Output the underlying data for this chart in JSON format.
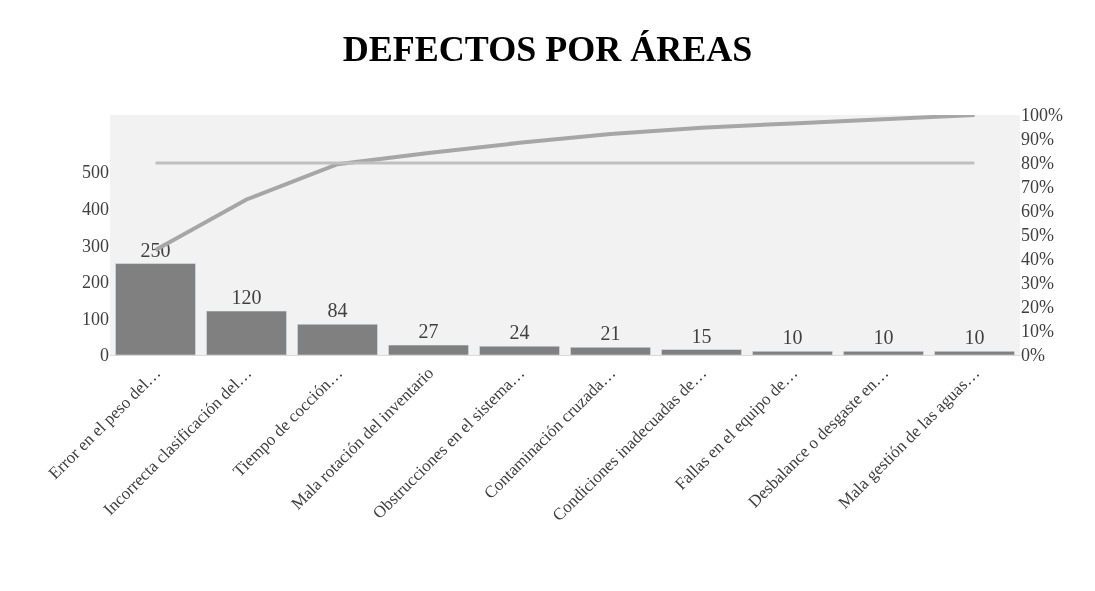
{
  "chart_data": {
    "type": "bar",
    "title": "DEFECTOS POR ÁREAS",
    "categories": [
      "Error en el peso del…",
      "Incorrecta clasificación del…",
      "Tiempo de cocción…",
      "Mala rotación del inventario",
      "Obstrucciones en el sistema…",
      "Contaminación cruzada…",
      "Condiciones inadecuadas de…",
      "Fallas en el equipo de…",
      "Desbalance o desgaste en…",
      "Mala gestión de las aguas…"
    ],
    "series": [
      {
        "color": "#808080",
        "values": [
          250,
          120,
          84,
          27,
          24,
          21,
          15,
          10,
          10,
          10
        ],
        "value_labels": [
          "250",
          "120",
          "84",
          "27",
          "24",
          "21",
          "15",
          "10",
          "10",
          "10"
        ]
      },
      {
        "type": "line",
        "axis": "y2",
        "color": "#a6a6a6",
        "values": [
          43.8,
          64.8,
          79.5,
          84.2,
          88.4,
          92.1,
          94.7,
          96.5,
          98.2,
          100
        ]
      }
    ],
    "ylim": [
      0,
      656
    ],
    "yticks": [
      0,
      100,
      200,
      300,
      400,
      500
    ],
    "y2lim": [
      0,
      100
    ],
    "y2ticks": [
      {
        "value": 0,
        "label": "0%"
      },
      {
        "value": 10,
        "label": "10%"
      },
      {
        "value": 20,
        "label": "20%"
      },
      {
        "value": 30,
        "label": "30%"
      },
      {
        "value": 40,
        "label": "40%"
      },
      {
        "value": 50,
        "label": "50%"
      },
      {
        "value": 60,
        "label": "60%"
      },
      {
        "value": 70,
        "label": "70%"
      },
      {
        "value": 80,
        "label": "80%"
      },
      {
        "value": 90,
        "label": "90%"
      },
      {
        "value": 100,
        "label": "100%"
      }
    ],
    "ref_lines": [
      {
        "axis": "y2",
        "value": 80,
        "color": "#bfbfbf"
      }
    ]
  }
}
